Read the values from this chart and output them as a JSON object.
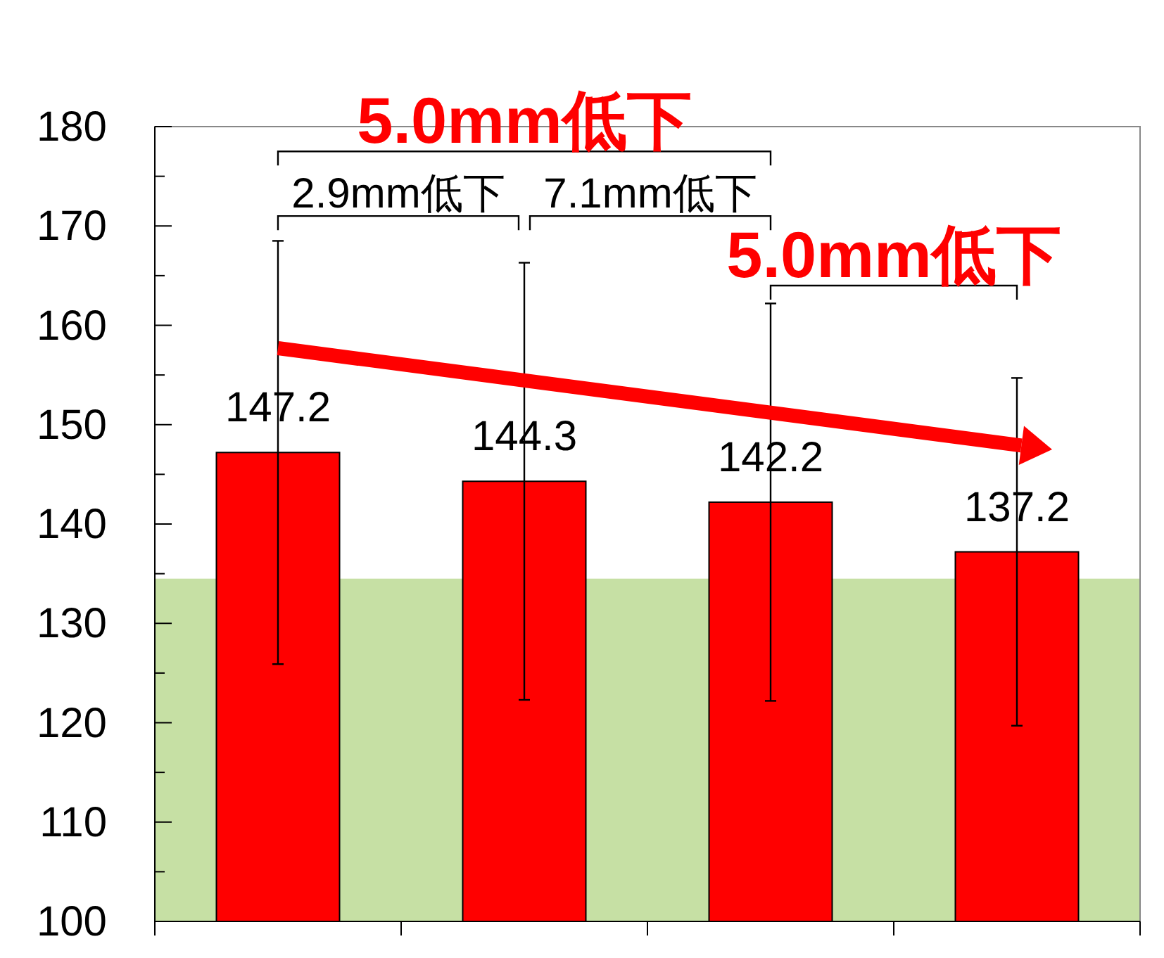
{
  "chart_data": {
    "type": "bar",
    "categories": [
      null,
      null,
      null,
      null
    ],
    "values": [
      147.2,
      144.3,
      142.2,
      137.2
    ],
    "errors": [
      21.3,
      22,
      20,
      17.5
    ],
    "color": "#ff0000",
    "data_labels": true,
    "grid": false,
    "ylim": [
      100,
      180
    ],
    "yticks": [
      100,
      {
        "value": 105,
        "label": null
      },
      110,
      {
        "value": 115,
        "label": null
      },
      120,
      {
        "value": 125,
        "label": null
      },
      130,
      {
        "value": 135,
        "label": null
      },
      140,
      {
        "value": 145,
        "label": null
      },
      150,
      {
        "value": 155,
        "label": null
      },
      160,
      {
        "value": 165,
        "label": null
      },
      170,
      {
        "value": 175,
        "label": null
      },
      180
    ],
    "bands": [
      {
        "axis": "y",
        "from": 100,
        "to": 134.5,
        "color": "#c6e0a4"
      }
    ],
    "annotations": [
      "5.0mm低下",
      "2.9mm低下",
      "7.1mm低下",
      "5.0mm低下"
    ]
  }
}
